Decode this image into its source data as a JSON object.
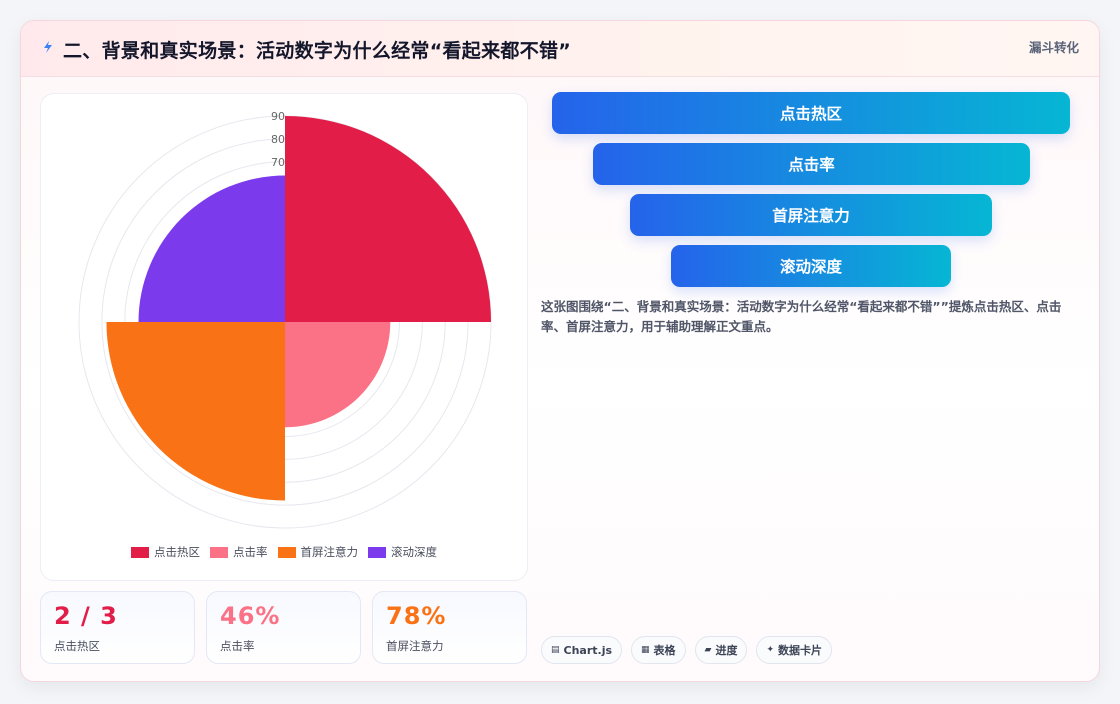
{
  "header": {
    "title": "二、背景和真实场景：活动数字为什么经常“看起来都不错”",
    "tag": "漏斗转化"
  },
  "chart_data": {
    "type": "polarArea",
    "categories": [
      "点击热区",
      "点击率",
      "首屏注意力",
      "滚动深度"
    ],
    "values": [
      90,
      46,
      78,
      64
    ],
    "colors": [
      "#e11d48",
      "#fb7185",
      "#f97316",
      "#7c3aed"
    ],
    "r_max": 90,
    "r_ticks": [
      90,
      80,
      70
    ],
    "legend_position": "bottom"
  },
  "stats": [
    {
      "value": "2 / 3",
      "label": "点击热区",
      "color": "#e11d48"
    },
    {
      "value": "46%",
      "label": "点击率",
      "color": "#fb7185"
    },
    {
      "value": "78%",
      "label": "首屏注意力",
      "color": "#f97316"
    }
  ],
  "funnel": [
    "点击热区",
    "点击率",
    "首屏注意力",
    "滚动深度"
  ],
  "description": "这张图围绕“二、背景和真实场景：活动数字为什么经常“看起来都不错””提炼点击热区、点击率、首屏注意力，用于辅助理解正文重点。",
  "chips": [
    {
      "icon": "▤",
      "label": "Chart.js"
    },
    {
      "icon": "▦",
      "label": "表格"
    },
    {
      "icon": "▰",
      "label": "进度"
    },
    {
      "icon": "✦",
      "label": "数据卡片"
    }
  ],
  "colors": {
    "accent_blue": "#2563eb",
    "accent_cyan": "#06b6d4"
  }
}
